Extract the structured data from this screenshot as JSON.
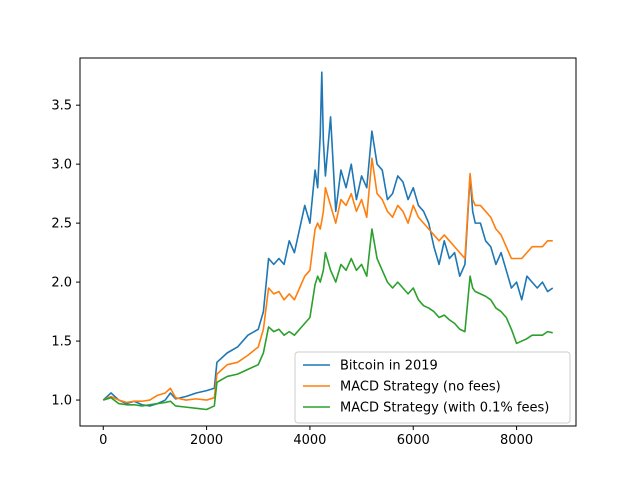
{
  "chart_data": {
    "type": "line",
    "title": "",
    "xlabel": "",
    "ylabel": "",
    "xlim": [
      -450,
      9150
    ],
    "ylim": [
      0.78,
      3.9
    ],
    "x_ticks": [
      0,
      2000,
      4000,
      6000,
      8000
    ],
    "y_ticks": [
      1.0,
      1.5,
      2.0,
      2.5,
      3.0,
      3.5
    ],
    "x_tick_labels": [
      "0",
      "2000",
      "4000",
      "6000",
      "8000"
    ],
    "y_tick_labels": [
      "1.0",
      "1.5",
      "2.0",
      "2.5",
      "3.0",
      "3.5"
    ],
    "grid": false,
    "legend_position": "lower-right",
    "series": [
      {
        "name": "Bitcoin in 2019",
        "color": "#1f77b4",
        "x": [
          0,
          150,
          300,
          450,
          600,
          750,
          900,
          1050,
          1200,
          1300,
          1400,
          1600,
          1800,
          2000,
          2150,
          2200,
          2400,
          2600,
          2800,
          3000,
          3100,
          3200,
          3300,
          3400,
          3500,
          3600,
          3700,
          3800,
          3900,
          4000,
          4100,
          4150,
          4200,
          4230,
          4260,
          4300,
          4400,
          4500,
          4600,
          4700,
          4800,
          4900,
          5000,
          5100,
          5200,
          5300,
          5400,
          5500,
          5600,
          5700,
          5800,
          5900,
          6000,
          6100,
          6200,
          6300,
          6400,
          6500,
          6600,
          6700,
          6800,
          6900,
          7000,
          7100,
          7150,
          7200,
          7300,
          7400,
          7500,
          7600,
          7700,
          7800,
          7900,
          8000,
          8100,
          8200,
          8300,
          8400,
          8500,
          8600,
          8700
        ],
        "values": [
          1.0,
          1.06,
          1.0,
          0.97,
          0.99,
          0.96,
          0.95,
          0.97,
          1.0,
          1.06,
          1.01,
          1.03,
          1.06,
          1.08,
          1.1,
          1.32,
          1.4,
          1.45,
          1.55,
          1.6,
          1.75,
          2.2,
          2.15,
          2.2,
          2.15,
          2.35,
          2.25,
          2.45,
          2.65,
          2.5,
          2.95,
          2.8,
          3.25,
          3.78,
          3.2,
          2.9,
          3.4,
          2.6,
          2.95,
          2.8,
          3.0,
          2.7,
          2.9,
          2.8,
          3.28,
          3.0,
          2.95,
          2.7,
          2.75,
          2.9,
          2.85,
          2.7,
          2.8,
          2.65,
          2.6,
          2.5,
          2.3,
          2.15,
          2.35,
          2.2,
          2.25,
          2.05,
          2.15,
          2.9,
          2.6,
          2.5,
          2.5,
          2.35,
          2.3,
          2.15,
          2.25,
          2.1,
          1.95,
          2.0,
          1.85,
          2.05,
          2.0,
          1.95,
          2.0,
          1.92,
          1.95
        ]
      },
      {
        "name": "MACD Strategy (no fees)",
        "color": "#ff7f0e",
        "x": [
          0,
          150,
          300,
          450,
          600,
          750,
          900,
          1050,
          1200,
          1300,
          1400,
          1600,
          1800,
          2000,
          2150,
          2200,
          2400,
          2600,
          2800,
          3000,
          3100,
          3200,
          3300,
          3400,
          3500,
          3600,
          3700,
          3800,
          3900,
          4000,
          4100,
          4150,
          4200,
          4230,
          4260,
          4300,
          4400,
          4500,
          4600,
          4700,
          4800,
          4900,
          5000,
          5100,
          5200,
          5300,
          5400,
          5500,
          5600,
          5700,
          5800,
          5900,
          6000,
          6100,
          6200,
          6300,
          6400,
          6500,
          6600,
          6700,
          6800,
          6900,
          7000,
          7100,
          7150,
          7200,
          7300,
          7400,
          7500,
          7600,
          7700,
          7800,
          7900,
          8000,
          8100,
          8200,
          8300,
          8400,
          8500,
          8600,
          8700
        ],
        "values": [
          1.0,
          1.03,
          1.0,
          0.98,
          0.99,
          0.99,
          1.0,
          1.04,
          1.06,
          1.1,
          1.02,
          1.0,
          1.01,
          1.0,
          1.02,
          1.22,
          1.3,
          1.32,
          1.38,
          1.45,
          1.6,
          1.95,
          1.9,
          1.92,
          1.85,
          1.9,
          1.85,
          1.95,
          2.05,
          2.1,
          2.45,
          2.5,
          2.45,
          2.52,
          2.6,
          2.8,
          2.65,
          2.5,
          2.7,
          2.65,
          2.75,
          2.6,
          2.7,
          2.55,
          3.05,
          2.75,
          2.7,
          2.6,
          2.55,
          2.65,
          2.6,
          2.5,
          2.65,
          2.55,
          2.5,
          2.45,
          2.4,
          2.35,
          2.4,
          2.35,
          2.3,
          2.25,
          2.2,
          2.92,
          2.7,
          2.65,
          2.65,
          2.6,
          2.55,
          2.45,
          2.4,
          2.3,
          2.2,
          2.2,
          2.2,
          2.25,
          2.3,
          2.3,
          2.3,
          2.35,
          2.35
        ]
      },
      {
        "name": "MACD Strategy (with 0.1% fees)",
        "color": "#2ca02c",
        "x": [
          0,
          150,
          300,
          450,
          600,
          750,
          900,
          1050,
          1200,
          1300,
          1400,
          1600,
          1800,
          2000,
          2150,
          2200,
          2400,
          2600,
          2800,
          3000,
          3100,
          3200,
          3300,
          3400,
          3500,
          3600,
          3700,
          3800,
          3900,
          4000,
          4100,
          4150,
          4200,
          4230,
          4260,
          4300,
          4400,
          4500,
          4600,
          4700,
          4800,
          4900,
          5000,
          5100,
          5200,
          5300,
          5400,
          5500,
          5600,
          5700,
          5800,
          5900,
          6000,
          6100,
          6200,
          6300,
          6400,
          6500,
          6600,
          6700,
          6800,
          6900,
          7000,
          7100,
          7150,
          7200,
          7300,
          7400,
          7500,
          7600,
          7700,
          7800,
          7900,
          8000,
          8100,
          8200,
          8300,
          8400,
          8500,
          8600,
          8700
        ],
        "values": [
          1.0,
          1.02,
          0.97,
          0.96,
          0.96,
          0.95,
          0.96,
          0.97,
          0.98,
          0.99,
          0.95,
          0.94,
          0.93,
          0.92,
          0.95,
          1.15,
          1.2,
          1.22,
          1.26,
          1.3,
          1.4,
          1.62,
          1.58,
          1.6,
          1.55,
          1.58,
          1.55,
          1.6,
          1.65,
          1.7,
          1.98,
          2.05,
          2.0,
          2.05,
          2.1,
          2.25,
          2.1,
          2.0,
          2.15,
          2.1,
          2.2,
          2.1,
          2.15,
          2.05,
          2.45,
          2.2,
          2.1,
          2.0,
          1.95,
          2.0,
          1.95,
          1.9,
          1.95,
          1.85,
          1.8,
          1.78,
          1.75,
          1.7,
          1.72,
          1.68,
          1.65,
          1.6,
          1.58,
          2.05,
          1.95,
          1.92,
          1.9,
          1.88,
          1.85,
          1.78,
          1.75,
          1.7,
          1.6,
          1.48,
          1.5,
          1.52,
          1.55,
          1.55,
          1.55,
          1.58,
          1.57
        ]
      }
    ]
  }
}
